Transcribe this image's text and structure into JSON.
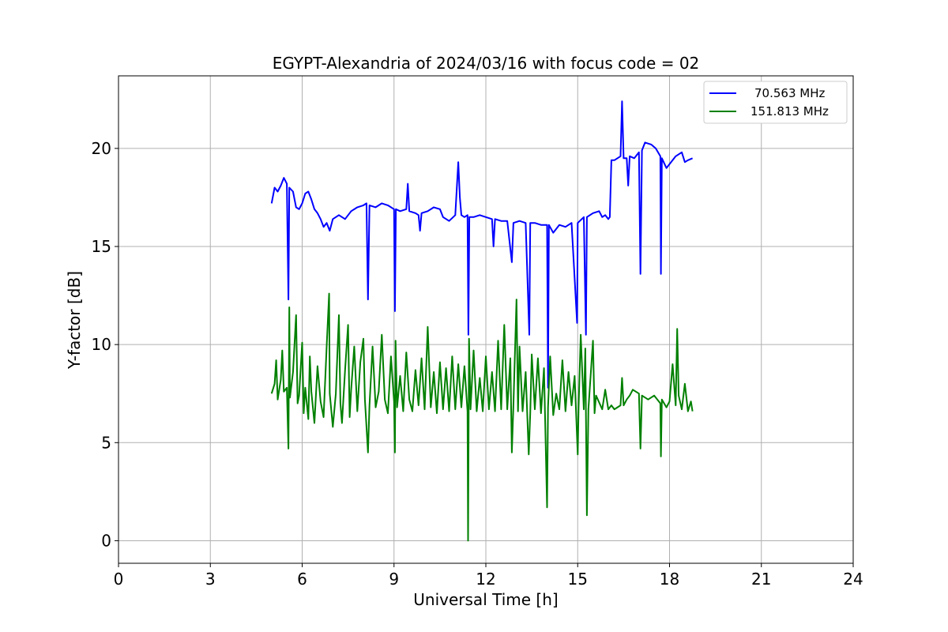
{
  "chart_data": {
    "type": "line",
    "title": "EGYPT-Alexandria of 2024/03/16 with focus code = 02",
    "xlabel": "Universal Time [h]",
    "ylabel": "Y-factor [dB]",
    "xlim": [
      0,
      24
    ],
    "ylim": [
      -1.15,
      23.7
    ],
    "x_ticks": [
      0,
      3,
      6,
      9,
      12,
      15,
      18,
      21,
      24
    ],
    "y_ticks": [
      0,
      5,
      10,
      15,
      20
    ],
    "grid": true,
    "legend_position": "upper right",
    "series": [
      {
        "name": "70.563 MHz",
        "color": "#0000ff",
        "points": [
          [
            5.0,
            17.2
          ],
          [
            5.1,
            18.0
          ],
          [
            5.2,
            17.8
          ],
          [
            5.3,
            18.1
          ],
          [
            5.4,
            18.5
          ],
          [
            5.5,
            18.2
          ],
          [
            5.55,
            12.3
          ],
          [
            5.58,
            18.0
          ],
          [
            5.7,
            17.8
          ],
          [
            5.8,
            17.0
          ],
          [
            5.9,
            16.9
          ],
          [
            6.0,
            17.2
          ],
          [
            6.1,
            17.7
          ],
          [
            6.2,
            17.8
          ],
          [
            6.3,
            17.4
          ],
          [
            6.4,
            16.9
          ],
          [
            6.5,
            16.7
          ],
          [
            6.6,
            16.4
          ],
          [
            6.7,
            16.0
          ],
          [
            6.8,
            16.2
          ],
          [
            6.9,
            15.8
          ],
          [
            7.0,
            16.4
          ],
          [
            7.2,
            16.6
          ],
          [
            7.4,
            16.4
          ],
          [
            7.6,
            16.8
          ],
          [
            7.8,
            17.0
          ],
          [
            8.0,
            17.1
          ],
          [
            8.1,
            17.2
          ],
          [
            8.15,
            12.3
          ],
          [
            8.2,
            17.1
          ],
          [
            8.4,
            17.0
          ],
          [
            8.6,
            17.2
          ],
          [
            8.8,
            17.1
          ],
          [
            9.0,
            16.9
          ],
          [
            9.03,
            11.7
          ],
          [
            9.06,
            16.9
          ],
          [
            9.2,
            16.8
          ],
          [
            9.4,
            16.9
          ],
          [
            9.45,
            18.2
          ],
          [
            9.5,
            16.8
          ],
          [
            9.7,
            16.7
          ],
          [
            9.8,
            16.6
          ],
          [
            9.85,
            15.8
          ],
          [
            9.9,
            16.7
          ],
          [
            10.1,
            16.8
          ],
          [
            10.3,
            17.0
          ],
          [
            10.5,
            16.9
          ],
          [
            10.6,
            16.5
          ],
          [
            10.8,
            16.3
          ],
          [
            11.0,
            16.6
          ],
          [
            11.1,
            19.3
          ],
          [
            11.15,
            17.5
          ],
          [
            11.2,
            16.6
          ],
          [
            11.3,
            16.5
          ],
          [
            11.4,
            16.6
          ],
          [
            11.43,
            10.5
          ],
          [
            11.46,
            16.5
          ],
          [
            11.6,
            16.5
          ],
          [
            11.8,
            16.6
          ],
          [
            12.0,
            16.5
          ],
          [
            12.2,
            16.4
          ],
          [
            12.25,
            15.0
          ],
          [
            12.3,
            16.4
          ],
          [
            12.5,
            16.3
          ],
          [
            12.7,
            16.3
          ],
          [
            12.85,
            14.2
          ],
          [
            12.9,
            16.2
          ],
          [
            13.1,
            16.3
          ],
          [
            13.3,
            16.2
          ],
          [
            13.42,
            10.5
          ],
          [
            13.45,
            16.2
          ],
          [
            13.6,
            16.2
          ],
          [
            13.8,
            16.1
          ],
          [
            14.0,
            16.1
          ],
          [
            14.03,
            7.8
          ],
          [
            14.06,
            16.1
          ],
          [
            14.2,
            15.7
          ],
          [
            14.4,
            16.1
          ],
          [
            14.6,
            16.0
          ],
          [
            14.8,
            16.2
          ],
          [
            14.98,
            11.1
          ],
          [
            15.0,
            16.2
          ],
          [
            15.2,
            16.5
          ],
          [
            15.27,
            10.5
          ],
          [
            15.3,
            16.5
          ],
          [
            15.5,
            16.7
          ],
          [
            15.7,
            16.8
          ],
          [
            15.8,
            16.5
          ],
          [
            15.9,
            16.6
          ],
          [
            16.0,
            16.4
          ],
          [
            16.05,
            16.5
          ],
          [
            16.1,
            19.4
          ],
          [
            16.2,
            19.4
          ],
          [
            16.4,
            19.6
          ],
          [
            16.45,
            22.4
          ],
          [
            16.5,
            19.5
          ],
          [
            16.6,
            19.5
          ],
          [
            16.65,
            18.1
          ],
          [
            16.7,
            19.6
          ],
          [
            16.85,
            19.5
          ],
          [
            17.0,
            19.8
          ],
          [
            17.05,
            13.6
          ],
          [
            17.1,
            19.9
          ],
          [
            17.2,
            20.3
          ],
          [
            17.4,
            20.2
          ],
          [
            17.55,
            20.0
          ],
          [
            17.7,
            19.6
          ],
          [
            17.72,
            13.6
          ],
          [
            17.75,
            19.5
          ],
          [
            17.9,
            19.0
          ],
          [
            18.0,
            19.2
          ],
          [
            18.2,
            19.6
          ],
          [
            18.4,
            19.8
          ],
          [
            18.5,
            19.3
          ],
          [
            18.6,
            19.4
          ],
          [
            18.75,
            19.5
          ]
        ]
      },
      {
        "name": "151.813 MHz",
        "color": "#008000",
        "points": [
          [
            5.0,
            7.5
          ],
          [
            5.1,
            8.0
          ],
          [
            5.15,
            9.2
          ],
          [
            5.2,
            7.2
          ],
          [
            5.3,
            8.2
          ],
          [
            5.35,
            9.7
          ],
          [
            5.4,
            7.6
          ],
          [
            5.5,
            7.8
          ],
          [
            5.55,
            4.7
          ],
          [
            5.58,
            11.9
          ],
          [
            5.6,
            7.3
          ],
          [
            5.7,
            8.6
          ],
          [
            5.8,
            11.5
          ],
          [
            5.85,
            7.0
          ],
          [
            5.9,
            7.4
          ],
          [
            6.0,
            10.1
          ],
          [
            6.05,
            6.5
          ],
          [
            6.1,
            7.8
          ],
          [
            6.2,
            6.2
          ],
          [
            6.25,
            9.4
          ],
          [
            6.3,
            7.6
          ],
          [
            6.4,
            6.0
          ],
          [
            6.5,
            8.9
          ],
          [
            6.6,
            7.1
          ],
          [
            6.7,
            6.3
          ],
          [
            6.8,
            9.9
          ],
          [
            6.88,
            12.6
          ],
          [
            6.9,
            7.5
          ],
          [
            7.0,
            5.8
          ],
          [
            7.1,
            7.5
          ],
          [
            7.2,
            11.5
          ],
          [
            7.25,
            7.0
          ],
          [
            7.3,
            6.0
          ],
          [
            7.4,
            8.7
          ],
          [
            7.5,
            11.0
          ],
          [
            7.55,
            6.3
          ],
          [
            7.6,
            7.7
          ],
          [
            7.7,
            9.9
          ],
          [
            7.8,
            6.6
          ],
          [
            7.9,
            9.1
          ],
          [
            8.0,
            10.3
          ],
          [
            8.05,
            7.2
          ],
          [
            8.15,
            4.5
          ],
          [
            8.2,
            6.9
          ],
          [
            8.3,
            9.9
          ],
          [
            8.4,
            6.8
          ],
          [
            8.5,
            7.6
          ],
          [
            8.6,
            10.5
          ],
          [
            8.7,
            7.2
          ],
          [
            8.8,
            6.5
          ],
          [
            8.9,
            9.4
          ],
          [
            9.0,
            7.1
          ],
          [
            9.03,
            4.5
          ],
          [
            9.05,
            10.2
          ],
          [
            9.1,
            6.8
          ],
          [
            9.2,
            8.4
          ],
          [
            9.3,
            6.6
          ],
          [
            9.4,
            9.6
          ],
          [
            9.5,
            7.2
          ],
          [
            9.6,
            6.6
          ],
          [
            9.7,
            8.7
          ],
          [
            9.8,
            6.9
          ],
          [
            9.9,
            9.3
          ],
          [
            10.0,
            6.7
          ],
          [
            10.1,
            10.9
          ],
          [
            10.2,
            6.8
          ],
          [
            10.3,
            8.6
          ],
          [
            10.4,
            6.5
          ],
          [
            10.5,
            9.1
          ],
          [
            10.6,
            6.7
          ],
          [
            10.7,
            8.8
          ],
          [
            10.8,
            6.6
          ],
          [
            10.9,
            9.4
          ],
          [
            11.0,
            6.7
          ],
          [
            11.1,
            9.0
          ],
          [
            11.2,
            6.8
          ],
          [
            11.3,
            8.9
          ],
          [
            11.4,
            6.6
          ],
          [
            11.42,
            0.0
          ],
          [
            11.45,
            10.3
          ],
          [
            11.5,
            6.7
          ],
          [
            11.6,
            9.7
          ],
          [
            11.7,
            6.6
          ],
          [
            11.8,
            8.3
          ],
          [
            11.9,
            6.6
          ],
          [
            12.0,
            9.4
          ],
          [
            12.1,
            6.7
          ],
          [
            12.2,
            8.6
          ],
          [
            12.3,
            6.6
          ],
          [
            12.4,
            10.2
          ],
          [
            12.5,
            6.7
          ],
          [
            12.6,
            11.0
          ],
          [
            12.7,
            6.7
          ],
          [
            12.8,
            9.3
          ],
          [
            12.85,
            4.5
          ],
          [
            12.9,
            6.9
          ],
          [
            13.0,
            12.3
          ],
          [
            13.05,
            6.6
          ],
          [
            13.1,
            9.9
          ],
          [
            13.2,
            6.6
          ],
          [
            13.3,
            8.6
          ],
          [
            13.4,
            4.4
          ],
          [
            13.45,
            6.5
          ],
          [
            13.5,
            9.5
          ],
          [
            13.6,
            6.7
          ],
          [
            13.7,
            9.3
          ],
          [
            13.8,
            6.5
          ],
          [
            13.9,
            8.8
          ],
          [
            14.0,
            1.7
          ],
          [
            14.03,
            6.8
          ],
          [
            14.1,
            9.4
          ],
          [
            14.2,
            6.4
          ],
          [
            14.3,
            7.5
          ],
          [
            14.4,
            6.7
          ],
          [
            14.5,
            9.2
          ],
          [
            14.6,
            6.6
          ],
          [
            14.7,
            8.6
          ],
          [
            14.8,
            6.9
          ],
          [
            14.9,
            8.4
          ],
          [
            15.0,
            4.4
          ],
          [
            15.03,
            6.8
          ],
          [
            15.1,
            10.5
          ],
          [
            15.2,
            6.7
          ],
          [
            15.25,
            9.8
          ],
          [
            15.3,
            1.3
          ],
          [
            15.35,
            6.7
          ],
          [
            15.5,
            10.2
          ],
          [
            15.55,
            6.5
          ],
          [
            15.6,
            7.4
          ],
          [
            15.8,
            6.7
          ],
          [
            15.9,
            7.7
          ],
          [
            16.0,
            6.7
          ],
          [
            16.1,
            6.9
          ],
          [
            16.2,
            6.7
          ],
          [
            16.3,
            6.8
          ],
          [
            16.4,
            6.9
          ],
          [
            16.45,
            8.3
          ],
          [
            16.5,
            6.9
          ],
          [
            16.6,
            7.2
          ],
          [
            16.7,
            7.4
          ],
          [
            16.8,
            7.7
          ],
          [
            17.0,
            7.5
          ],
          [
            17.05,
            4.7
          ],
          [
            17.1,
            7.4
          ],
          [
            17.3,
            7.2
          ],
          [
            17.5,
            7.4
          ],
          [
            17.7,
            7.0
          ],
          [
            17.72,
            4.3
          ],
          [
            17.75,
            7.2
          ],
          [
            17.9,
            6.8
          ],
          [
            18.0,
            7.1
          ],
          [
            18.1,
            9.0
          ],
          [
            18.2,
            6.9
          ],
          [
            18.25,
            10.8
          ],
          [
            18.3,
            7.4
          ],
          [
            18.4,
            6.7
          ],
          [
            18.5,
            8.0
          ],
          [
            18.6,
            6.6
          ],
          [
            18.7,
            7.1
          ],
          [
            18.75,
            6.6
          ]
        ]
      }
    ]
  }
}
